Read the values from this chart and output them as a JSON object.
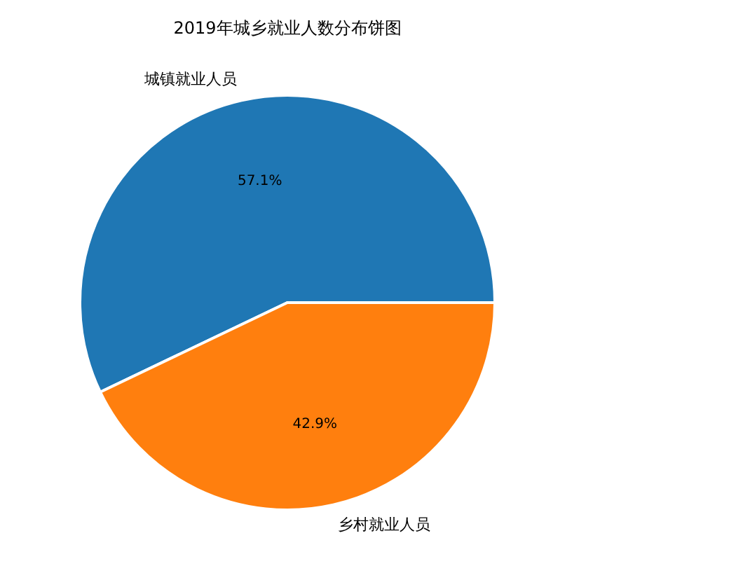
{
  "chart_data": {
    "type": "pie",
    "title": "2019年城乡就业人数分布饼图",
    "categories": [
      "城镇就业人员",
      "乡村就业人员"
    ],
    "values": [
      57.1,
      42.9
    ],
    "colors": [
      "#1f77b4",
      "#ff7f0e"
    ],
    "value_labels": [
      "57.1%",
      "42.9%"
    ]
  }
}
